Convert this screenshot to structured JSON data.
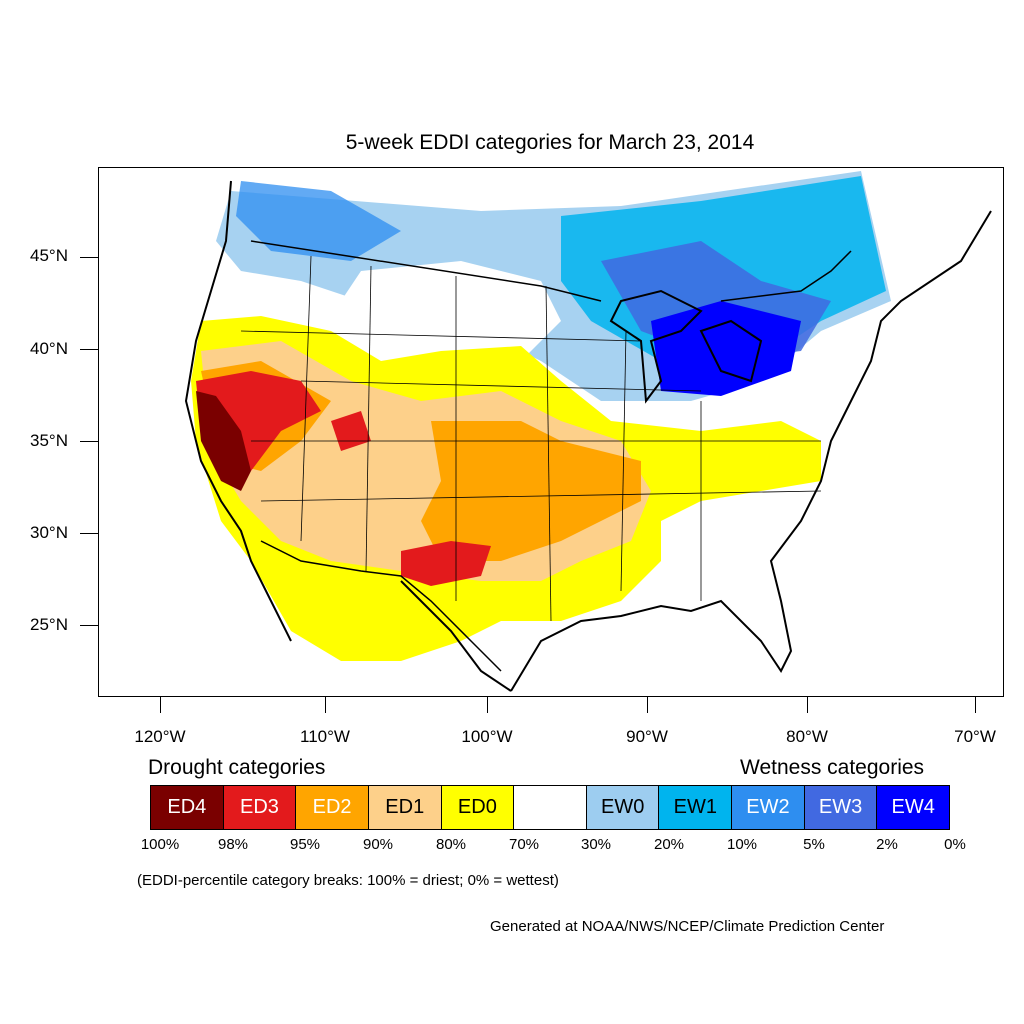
{
  "title": "5-week EDDI categories for March 23, 2014",
  "lat_labels": [
    "45°N",
    "40°N",
    "35°N",
    "30°N",
    "25°N"
  ],
  "lon_labels": [
    "120°W",
    "110°W",
    "100°W",
    "90°W",
    "80°W",
    "70°W"
  ],
  "legend": {
    "drought_heading": "Drought categories",
    "wetness_heading": "Wetness categories",
    "categories": [
      {
        "label": "ED4",
        "color": "#7a0000",
        "text_color": "#ffffff"
      },
      {
        "label": "ED3",
        "color": "#e31a1c",
        "text_color": "#ffffff"
      },
      {
        "label": "ED2",
        "color": "#ffa500",
        "text_color": "#ffffff"
      },
      {
        "label": "ED1",
        "color": "#fdd08a",
        "text_color": "#000000"
      },
      {
        "label": "ED0",
        "color": "#ffff00",
        "text_color": "#000000"
      },
      {
        "label": "",
        "color": "#ffffff",
        "text_color": "#000000"
      },
      {
        "label": "EW0",
        "color": "#9dcdf0",
        "text_color": "#000000"
      },
      {
        "label": "EW1",
        "color": "#00b4ee",
        "text_color": "#000000"
      },
      {
        "label": "EW2",
        "color": "#2e8ef0",
        "text_color": "#ffffff"
      },
      {
        "label": "EW3",
        "color": "#4169e1",
        "text_color": "#ffffff"
      },
      {
        "label": "EW4",
        "color": "#0000ff",
        "text_color": "#ffffff"
      }
    ],
    "breaks": [
      "100%",
      "98%",
      "95%",
      "90%",
      "80%",
      "70%",
      "30%",
      "20%",
      "10%",
      "5%",
      "2%",
      "0%"
    ]
  },
  "note": "(EDDI-percentile category breaks: 100% = driest; 0% = wettest)",
  "credit": "Generated at NOAA/NWS/NCEP/Climate Prediction Center"
}
